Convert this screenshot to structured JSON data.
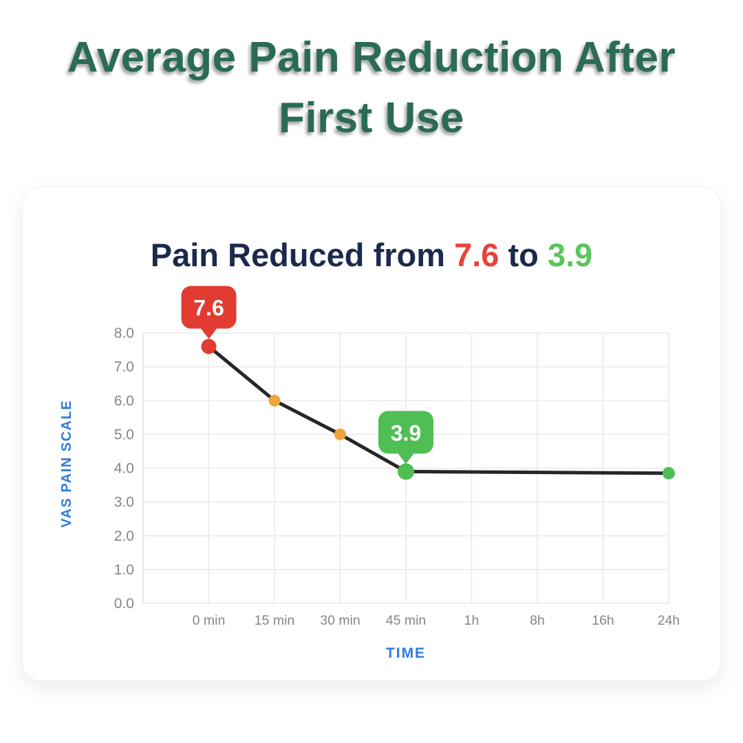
{
  "header": {
    "title": "Average Pain Reduction After First Use"
  },
  "card": {
    "title": {
      "prefix": "Pain Reduced from",
      "from_value": "7.6",
      "connector": "to",
      "to_value": "3.9"
    }
  },
  "chart_data": {
    "type": "line",
    "title": "Pain Reduced from 7.6 to 3.9",
    "xlabel": "TIME",
    "ylabel": "VAS PAIN SCALE",
    "x_categories": [
      "0 min",
      "15 min",
      "30 min",
      "45 min",
      "1h",
      "8h",
      "16h",
      "24h"
    ],
    "yticks": [
      "8.0",
      "7.0",
      "6.0",
      "5.0",
      "4.0",
      "3.0",
      "2.0",
      "1.0",
      "0.0"
    ],
    "ylim": [
      0,
      8
    ],
    "grid": true,
    "legend": "none",
    "series": [
      {
        "name": "VAS pain score",
        "line_color": "#262626",
        "points": [
          {
            "x": "0 min",
            "y": 7.6,
            "dot_color": "#e23b31"
          },
          {
            "x": "15 min",
            "y": 6.0,
            "dot_color": "#f0a43c"
          },
          {
            "x": "30 min",
            "y": 5.0,
            "dot_color": "#f0a43c"
          },
          {
            "x": "45 min",
            "y": 3.9,
            "dot_color": "#4fbe54"
          },
          {
            "x": "24h",
            "y": 3.85,
            "dot_color": "#4fbe54"
          }
        ]
      }
    ],
    "callouts": [
      {
        "label": "7.6",
        "at_x": "0 min",
        "at_y": 7.6,
        "color": "#e23b31",
        "text_color": "#ffffff"
      },
      {
        "label": "3.9",
        "at_x": "45 min",
        "at_y": 3.9,
        "color": "#4fbe54",
        "text_color": "#ffffff"
      }
    ]
  },
  "colors": {
    "header_title": "#2a6b54",
    "chart_title": "#1b2a4c",
    "title_from_red": "#e8433a",
    "title_to_green": "#5cc55c",
    "axis_label_blue": "#2e7bdc",
    "tick_gray": "#85858a",
    "grid_gray": "#ececec",
    "line_dark": "#262626",
    "card_background": "#ffffff"
  }
}
